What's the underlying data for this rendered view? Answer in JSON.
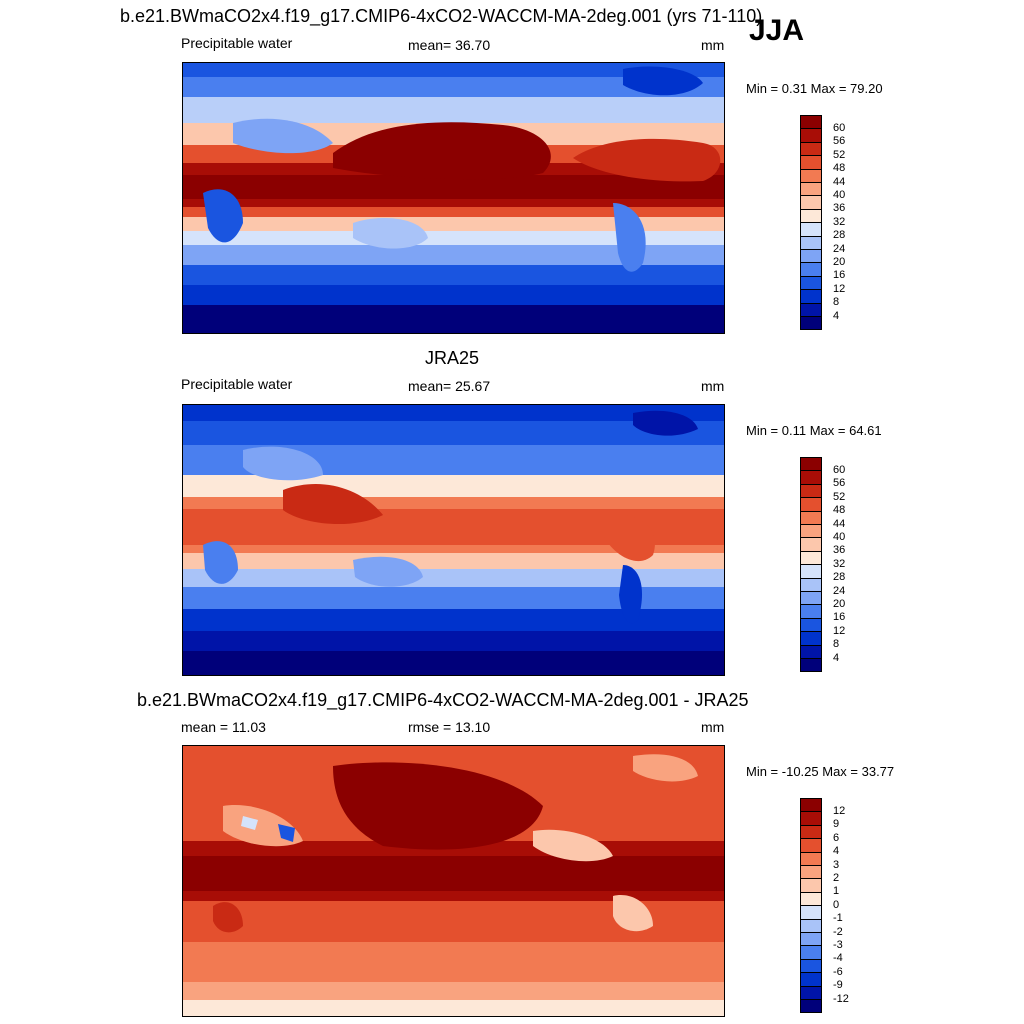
{
  "header": {
    "model_title": "b.e21.BWmaCO2x4.f19_g17.CMIP6-4xCO2-WACCM-MA-2deg.001 (yrs 71-110)",
    "season": "JJA"
  },
  "panels": [
    {
      "title": "",
      "left_label": "Precipitable water",
      "center_label": "mean=  36.70",
      "units": "mm",
      "minmax": "Min =   0.31 Max =  79.20",
      "levels": [
        "4",
        "8",
        "12",
        "16",
        "20",
        "24",
        "28",
        "32",
        "36",
        "40",
        "44",
        "48",
        "52",
        "56",
        "60"
      ],
      "colors": [
        "#00007a",
        "#0014a8",
        "#0033cc",
        "#1a55e0",
        "#4a7fef",
        "#7ea4f5",
        "#a9c3f8",
        "#d5e3fb",
        "#fde8d8",
        "#fcc7ac",
        "#f9a37f",
        "#f27a52",
        "#e4502e",
        "#c92a14",
        "#a80d06",
        "#8b0000"
      ]
    },
    {
      "title": "JRA25",
      "left_label": "Precipitable water",
      "center_label": "mean=  25.67",
      "units": "mm",
      "minmax": "Min =   0.11 Max =  64.61",
      "levels": [
        "4",
        "8",
        "12",
        "16",
        "20",
        "24",
        "28",
        "32",
        "36",
        "40",
        "44",
        "48",
        "52",
        "56",
        "60"
      ],
      "colors": [
        "#00007a",
        "#0014a8",
        "#0033cc",
        "#1a55e0",
        "#4a7fef",
        "#7ea4f5",
        "#a9c3f8",
        "#d5e3fb",
        "#fde8d8",
        "#fcc7ac",
        "#f9a37f",
        "#f27a52",
        "#e4502e",
        "#c92a14",
        "#a80d06",
        "#8b0000"
      ]
    },
    {
      "title": "b.e21.BWmaCO2x4.f19_g17.CMIP6-4xCO2-WACCM-MA-2deg.001 - JRA25",
      "left_label": "mean =  11.03",
      "center_label": "rmse =  13.10",
      "units": "mm",
      "minmax": "Min = -10.25 Max =  33.77",
      "levels": [
        "-12",
        "-9",
        "-6",
        "-4",
        "-3",
        "-2",
        "-1",
        "0",
        "1",
        "2",
        "3",
        "4",
        "6",
        "9",
        "12"
      ],
      "colors": [
        "#00007a",
        "#0014a8",
        "#0033cc",
        "#1a55e0",
        "#4a7fef",
        "#7ea4f5",
        "#a9c3f8",
        "#d5e3fb",
        "#fde8d8",
        "#fcc7ac",
        "#f9a37f",
        "#f27a52",
        "#e4502e",
        "#c92a14",
        "#a80d06",
        "#8b0000"
      ]
    }
  ]
}
